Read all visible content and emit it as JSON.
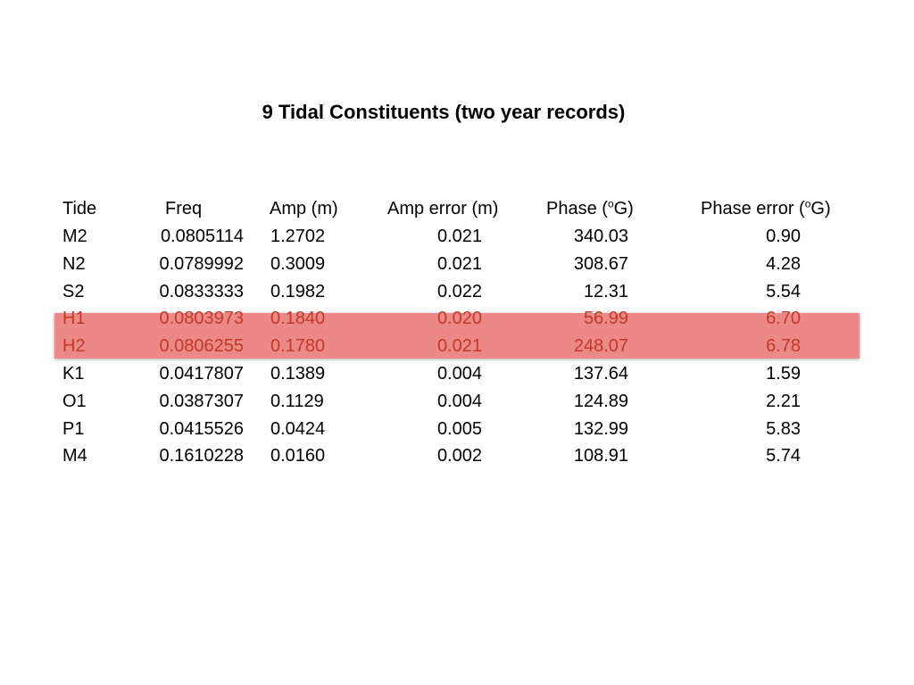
{
  "title": "9 Tidal Constituents  (two year records)",
  "highlight_color": "#ec8987",
  "table": {
    "headers": {
      "tide": "Tide",
      "freq": "Freq",
      "amp": "Amp (m)",
      "amp_error": "Amp error (m)",
      "phase_prefix": "Phase (",
      "phase_sup": "o",
      "phase_suffix": "G)",
      "phase_error_prefix": "Phase error (",
      "phase_error_sup": "o",
      "phase_error_suffix": "G)"
    },
    "rows": [
      {
        "tide": "M2",
        "freq": "0.0805114",
        "amp": "1.2702",
        "amp_error": "0.021",
        "phase": "340.03",
        "phase_error": "0.90",
        "highlighted": false
      },
      {
        "tide": "N2",
        "freq": "0.0789992",
        "amp": "0.3009",
        "amp_error": "0.021",
        "phase": "308.67",
        "phase_error": "4.28",
        "highlighted": false
      },
      {
        "tide": "S2",
        "freq": "0.0833333",
        "amp": "0.1982",
        "amp_error": "0.022",
        "phase": "12.31",
        "phase_error": "5.54",
        "highlighted": false
      },
      {
        "tide": "H1",
        "freq": "0.0803973",
        "amp": "0.1840",
        "amp_error": "0.020",
        "phase": "56.99",
        "phase_error": "6.70",
        "highlighted": true
      },
      {
        "tide": "H2",
        "freq": "0.0806255",
        "amp": "0.1780",
        "amp_error": "0.021",
        "phase": "248.07",
        "phase_error": "6.78",
        "highlighted": true
      },
      {
        "tide": "K1",
        "freq": "0.0417807",
        "amp": "0.1389",
        "amp_error": "0.004",
        "phase": "137.64",
        "phase_error": "1.59",
        "highlighted": false
      },
      {
        "tide": "O1",
        "freq": "0.0387307",
        "amp": "0.1129",
        "amp_error": "0.004",
        "phase": "124.89",
        "phase_error": "2.21",
        "highlighted": false
      },
      {
        "tide": "P1",
        "freq": "0.0415526",
        "amp": "0.0424",
        "amp_error": "0.005",
        "phase": "132.99",
        "phase_error": "5.83",
        "highlighted": false
      },
      {
        "tide": "M4",
        "freq": "0.1610228",
        "amp": "0.0160",
        "amp_error": "0.002",
        "phase": "108.91",
        "phase_error": "5.74",
        "highlighted": false
      }
    ]
  }
}
